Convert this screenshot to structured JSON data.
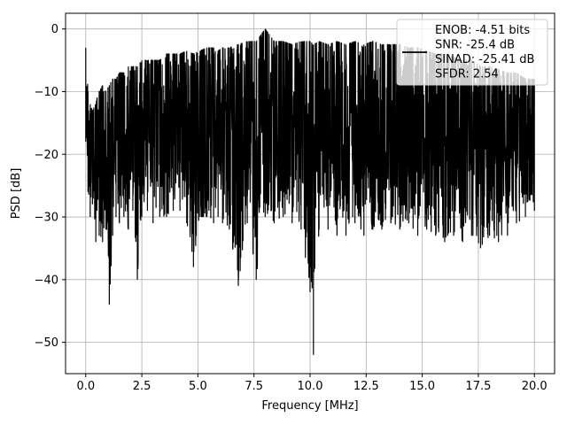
{
  "chart_data": {
    "type": "line",
    "title": "",
    "xlabel": "Frequency [MHz]",
    "ylabel": "PSD [dB]",
    "xlim": [
      -0.9,
      20.9
    ],
    "ylim": [
      -55,
      2.5
    ],
    "grid": true,
    "x_ticks": [
      0.0,
      2.5,
      5.0,
      7.5,
      10.0,
      12.5,
      15.0,
      17.5,
      20.0
    ],
    "x_tick_labels": [
      "0.0",
      "2.5",
      "5.0",
      "7.5",
      "10.0",
      "12.5",
      "15.0",
      "17.5",
      "20.0"
    ],
    "y_ticks": [
      0,
      -10,
      -20,
      -30,
      -40,
      -50
    ],
    "y_tick_labels": [
      "0",
      "−10",
      "−20",
      "−30",
      "−40",
      "−50"
    ],
    "legend": {
      "placement": "top-right",
      "entries": [
        "ENOB: -4.51 bits",
        "SNR: -25.4 dB",
        "SINAD: -25.41 dB",
        "SFDR: 2.54"
      ]
    },
    "series": [
      {
        "color": "#000000",
        "x": [
          0.0,
          0.1,
          0.2,
          0.3,
          0.45,
          0.5,
          0.6,
          0.75,
          0.9,
          1.05,
          1.2,
          1.35,
          1.5,
          1.7,
          1.9,
          2.1,
          2.3,
          2.5,
          2.75,
          3.0,
          3.3,
          3.6,
          3.9,
          4.2,
          4.5,
          4.8,
          5.1,
          5.4,
          5.7,
          5.9,
          6.1,
          6.4,
          6.8,
          7.2,
          7.6,
          8.0,
          8.4,
          8.8,
          9.2,
          9.6,
          10.0,
          10.15,
          10.4,
          10.8,
          11.2,
          11.6,
          12.0,
          12.4,
          12.8,
          13.2,
          13.6,
          14.0,
          14.4,
          14.8,
          15.2,
          15.6,
          16.0,
          16.4,
          16.8,
          17.2,
          17.6,
          18.0,
          18.4,
          18.8,
          19.2,
          19.6,
          20.0
        ],
        "upper": [
          -3.0,
          -10,
          -12,
          -13,
          -12,
          -11,
          -10,
          -9,
          -10,
          -9,
          -8,
          -8,
          -7,
          -7,
          -6,
          -6,
          -6,
          -5,
          -5,
          -5,
          -5,
          -4,
          -4,
          -4,
          -3.5,
          -4,
          -3.5,
          -3,
          -3,
          -3.5,
          -3,
          -3,
          -2.5,
          -2,
          -2,
          0.0,
          -2,
          -2,
          -2.5,
          -2,
          -2,
          -2.5,
          -2,
          -2.5,
          -2,
          -2.5,
          -2,
          -2.5,
          -2,
          -2.5,
          -2.5,
          -2.5,
          -3,
          -3,
          -3.5,
          -4,
          -4,
          -4.5,
          -5,
          -5,
          -6,
          -6,
          -6.5,
          -7,
          -7,
          -8,
          -8
        ],
        "lower": [
          -18,
          -26,
          -30,
          -28,
          -34,
          -29,
          -33,
          -34,
          -32,
          -44,
          -33,
          -30,
          -31,
          -30,
          -32,
          -29,
          -40,
          -30,
          -29,
          -31,
          -30,
          -30,
          -29,
          -29,
          -31,
          -38,
          -30,
          -30,
          -31,
          -30,
          -31,
          -32,
          -41,
          -31,
          -40,
          -30,
          -31,
          -30,
          -31,
          -32,
          -42,
          -52,
          -32,
          -32,
          -33,
          -33,
          -31,
          -33,
          -32,
          -32,
          -31,
          -32,
          -31,
          -33,
          -32,
          -33,
          -34,
          -33,
          -34,
          -33,
          -35,
          -33,
          -34,
          -33,
          -31,
          -30,
          -29
        ]
      }
    ]
  }
}
